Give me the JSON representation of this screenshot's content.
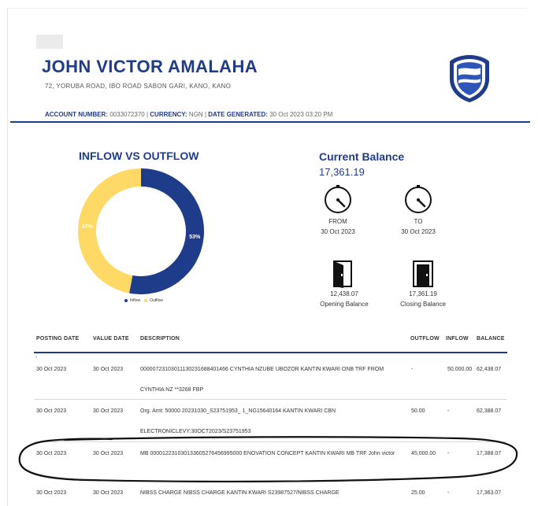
{
  "header": {
    "account_holder": "JOHN VICTOR AMALAHA",
    "address": "72, YORUBA ROAD, IBO ROAD SABON GARI, KANO, KANO",
    "account_number_label": "ACCOUNT NUMBER:",
    "account_number": "0033072370",
    "currency_label": "CURRENCY:",
    "currency": "NGN",
    "date_generated_label": "DATE GENERATED:",
    "date_generated": "30 Oct 2023 03:20 PM"
  },
  "chart_data": {
    "type": "pie",
    "title": "INFLOW VS OUTFLOW",
    "donut": true,
    "categories": [
      "Inflow",
      "Outflow"
    ],
    "values": [
      53,
      47
    ],
    "labels": [
      "53%",
      "47%"
    ],
    "legend_position": "bottom",
    "colors": [
      "#1f3c8a",
      "#ffd966"
    ]
  },
  "summary": {
    "current_balance_label": "Current Balance",
    "current_balance": "17,361.19",
    "from_label": "FROM",
    "from_date": "30 Oct 2023",
    "to_label": "TO",
    "to_date": "30 Oct 2023",
    "opening_balance": "12,438.07",
    "opening_balance_label": "Opening Balance",
    "closing_balance": "17,361.19",
    "closing_balance_label": "Closing Balance"
  },
  "table": {
    "columns": [
      "POSTING DATE",
      "VALUE DATE",
      "DESCRIPTION",
      "OUTFLOW",
      "INFLOW",
      "BALANCE"
    ],
    "rows": [
      {
        "posting_date": "30 Oct 2023",
        "value_date": "30 Oct 2023",
        "description": "000007231030111302316884014​66 CYNTHIA NZUBE UBOZOR KANTIN KWARI ONB TRF FROM CYNTHIA NZ **3268 FBP",
        "outflow": "-",
        "inflow": "50,000.00",
        "balance": "62,438.07"
      },
      {
        "posting_date": "30 Oct 2023",
        "value_date": "30 Oct 2023",
        "description": "Org. Amt: 50000 20231030_S23751953_ 1_NG15640164 KANTIN KWARI CBN ELECTRONICLEVY:30OCT2023/S23751953",
        "outflow": "50.00",
        "inflow": "-",
        "balance": "62,388.07"
      },
      {
        "posting_date": "30 Oct 2023",
        "value_date": "30 Oct 2023",
        "description": "MB 000012231030133605276456995000 ENOVATION CONCEPT KANTIN KWARI MB TRF John victor",
        "outflow": "45,000.00",
        "inflow": "-",
        "balance": "17,388.07"
      },
      {
        "posting_date": "30 Oct 2023",
        "value_date": "30 Oct 2023",
        "description": "NIBSS CHARGE NIBSS CHARGE KANTIN KWARI S23987527/NIBSS CHARGE",
        "outflow": "25.00",
        "inflow": "-",
        "balance": "17,363.07"
      }
    ]
  },
  "misc": {
    "dash": "-"
  },
  "colors": {
    "brand_blue": "#1f3c8a",
    "outflow_yellow": "#ffd966"
  }
}
